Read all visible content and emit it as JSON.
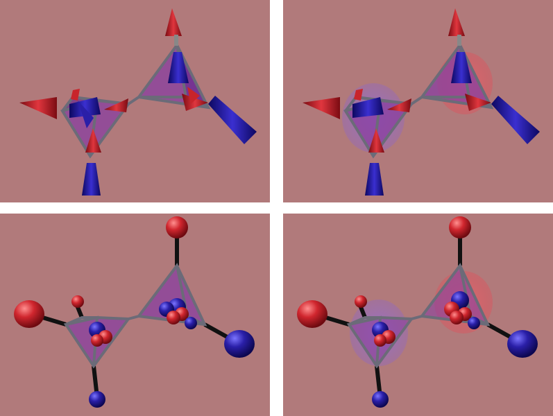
{
  "figure": {
    "background_color": "#b17a7b",
    "panels": [
      {
        "id": "top-left",
        "representation": "arrows",
        "clouds": false
      },
      {
        "id": "top-right",
        "representation": "arrows",
        "clouds": true
      },
      {
        "id": "bottom-left",
        "representation": "spheres",
        "clouds": false
      },
      {
        "id": "bottom-right",
        "representation": "spheres",
        "clouds": true
      }
    ],
    "colors": {
      "red": "#c8242b",
      "blue": "#2a1f9c",
      "tetrahedron": "#8a3fa0",
      "frame": "#6b6b78",
      "stick": "#111111"
    }
  }
}
